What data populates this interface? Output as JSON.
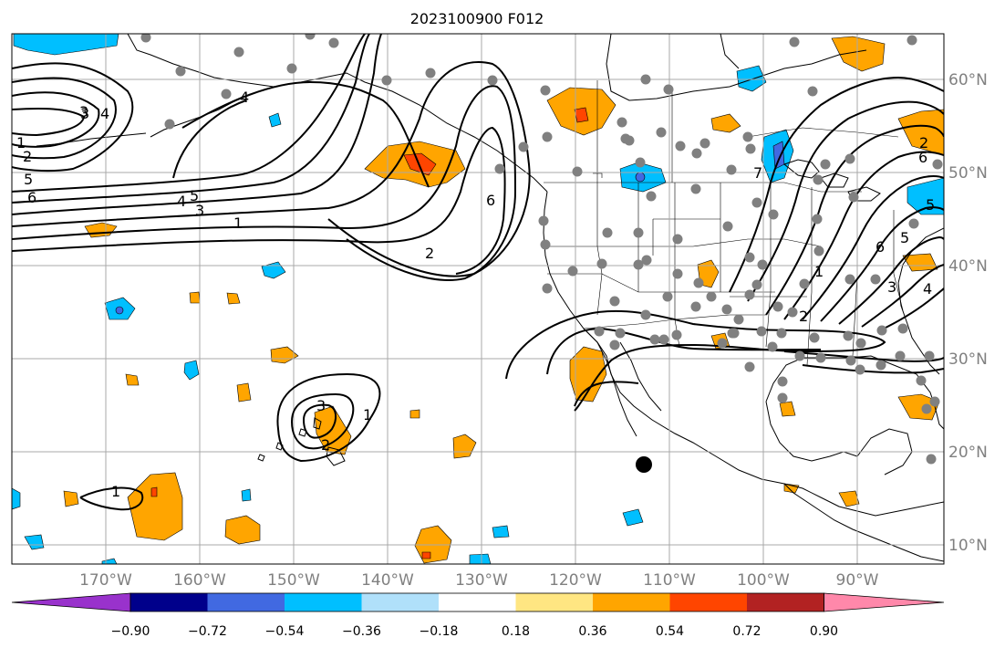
{
  "title": "2023100900 F012",
  "lon_labels": [
    "170°W",
    "160°W",
    "150°W",
    "140°W",
    "130°W",
    "120°W",
    "110°W",
    "100°W",
    "90°W"
  ],
  "lat_labels": [
    "60°N",
    "50°N",
    "40°N",
    "30°N",
    "20°N",
    "10°N"
  ],
  "colorbar": {
    "ticks": [
      "−0.90",
      "−0.72",
      "−0.54",
      "−0.36",
      "−0.18",
      "0.18",
      "0.36",
      "0.54",
      "0.72",
      "0.90"
    ],
    "colors": [
      "#9932cc",
      "#00008b",
      "#4169e1",
      "#00bfff",
      "#b0e0fa",
      "#ffffff",
      "#ffe682",
      "#ffa500",
      "#ff4500",
      "#b22222",
      "#ff88aa"
    ]
  },
  "contour_labels": [
    {
      "text": "1"
    },
    {
      "text": "2"
    },
    {
      "text": "3"
    },
    {
      "text": "4"
    },
    {
      "text": "5"
    },
    {
      "text": "6"
    },
    {
      "text": "5"
    },
    {
      "text": "4"
    },
    {
      "text": "3"
    },
    {
      "text": "1"
    },
    {
      "text": "2"
    },
    {
      "text": "6"
    },
    {
      "text": "3"
    },
    {
      "text": "2"
    },
    {
      "text": "1"
    },
    {
      "text": "1"
    },
    {
      "text": "7"
    },
    {
      "text": "6"
    },
    {
      "text": "5"
    },
    {
      "text": "4"
    },
    {
      "text": "3"
    },
    {
      "text": "2"
    },
    {
      "text": "1"
    },
    {
      "text": "6"
    },
    {
      "text": "5"
    },
    {
      "text": "2"
    },
    {
      "text": "3"
    },
    {
      "text": "4"
    }
  ],
  "colors": {
    "positive": "#ffa500",
    "positive_strong": "#ff4500",
    "negative": "#00bfff",
    "negative_strong": "#4169e1",
    "station": "#808080",
    "contour": "#000000",
    "grid": "#a9a9a9"
  }
}
